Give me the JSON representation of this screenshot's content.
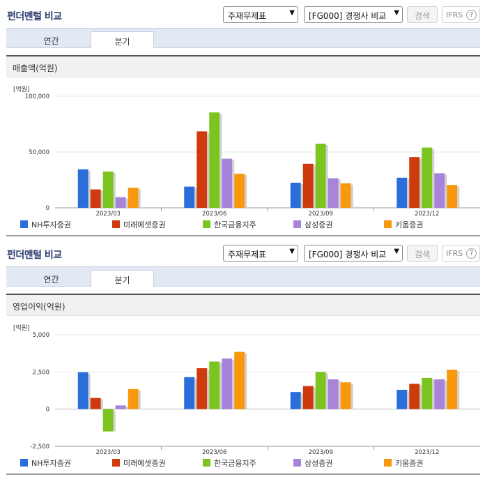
{
  "panels": [
    {
      "title": "펀더멘털 비교",
      "select1": "주재무제표",
      "select2": "[FG000] 경쟁사 비교",
      "search_label": "검색",
      "ifrs_label": "IFRS",
      "help_icon": "?",
      "tabs": [
        "연간",
        "분기"
      ],
      "active_tab": 1,
      "section_title": "매출액(억원)",
      "unit": "[억원]"
    },
    {
      "title": "펀더멘털 비교",
      "select1": "주재무제표",
      "select2": "[FG000] 경쟁사 비교",
      "search_label": "검색",
      "ifrs_label": "IFRS",
      "help_icon": "?",
      "tabs": [
        "연간",
        "분기"
      ],
      "active_tab": 1,
      "section_title": "영업이익(억원)",
      "unit": "[억원]"
    }
  ],
  "series_colors": [
    "#2a6edc",
    "#cf3a0c",
    "#7cc41f",
    "#a784d9",
    "#f7980f"
  ],
  "chart_data": [
    {
      "type": "bar",
      "title": "매출액(억원)",
      "categories": [
        "2023/03",
        "2023/06",
        "2023/09",
        "2023/12"
      ],
      "series": [
        {
          "name": "NH투자증권",
          "values": [
            34500,
            19000,
            22500,
            27000
          ]
        },
        {
          "name": "미래에셋증권",
          "values": [
            16500,
            68500,
            39500,
            45500
          ]
        },
        {
          "name": "한국금융지주",
          "values": [
            32500,
            85500,
            57500,
            54000
          ]
        },
        {
          "name": "삼성증권",
          "values": [
            9500,
            44000,
            26500,
            31000
          ]
        },
        {
          "name": "키움증권",
          "values": [
            18000,
            30500,
            22000,
            20500
          ]
        }
      ],
      "ylim": [
        0,
        100000
      ],
      "yticks": [
        "100,000",
        "50,000",
        "0"
      ],
      "ytick_values": [
        100000,
        50000,
        0
      ],
      "grid": true,
      "legend": "bottom"
    },
    {
      "type": "bar",
      "title": "영업이익(억원)",
      "categories": [
        "2023/03",
        "2023/06",
        "2023/09",
        "2023/12"
      ],
      "series": [
        {
          "name": "NH투자증권",
          "values": [
            2480,
            2150,
            1150,
            1300
          ]
        },
        {
          "name": "미래에셋증권",
          "values": [
            750,
            2750,
            1550,
            1700
          ]
        },
        {
          "name": "한국금융지주",
          "values": [
            -1500,
            3200,
            2500,
            2100
          ]
        },
        {
          "name": "삼성증권",
          "values": [
            250,
            3400,
            2000,
            2000
          ]
        },
        {
          "name": "키움증권",
          "values": [
            1350,
            3850,
            1800,
            2650
          ]
        }
      ],
      "ylim": [
        -2500,
        5000
      ],
      "yticks": [
        "5,000",
        "2,500",
        "0",
        "-2,500"
      ],
      "ytick_values": [
        5000,
        2500,
        0,
        -2500
      ],
      "grid": true,
      "legend": "bottom"
    }
  ]
}
